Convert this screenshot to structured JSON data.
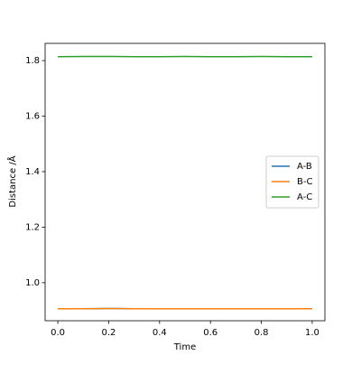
{
  "chart_data": {
    "type": "line",
    "x_label": "Time",
    "y_label": "Distance /Å",
    "x": [
      0,
      0.1,
      0.2,
      0.3,
      0.4,
      0.5,
      0.6,
      0.7,
      0.8,
      0.9,
      1
    ],
    "series": [
      {
        "name": "A-B",
        "color": "#1f77b4",
        "values": [
          0.906,
          0.906,
          0.907,
          0.906,
          0.906,
          0.906,
          0.906,
          0.906,
          0.906,
          0.906,
          0.906
        ]
      },
      {
        "name": "B-C",
        "color": "#ff7f0e",
        "values": [
          0.906,
          0.906,
          0.907,
          0.906,
          0.906,
          0.906,
          0.906,
          0.906,
          0.906,
          0.906,
          0.906
        ]
      },
      {
        "name": "A-C",
        "color": "#2ca02c",
        "values": [
          1.814,
          1.815,
          1.815,
          1.814,
          1.814,
          1.815,
          1.814,
          1.814,
          1.815,
          1.814,
          1.814
        ]
      }
    ],
    "xlim": [
      -0.05,
      1.05
    ],
    "ylim": [
      0.863,
      1.862
    ],
    "xticks": [
      {
        "value": 0,
        "label": "0.0"
      },
      0.2,
      0.4,
      0.6,
      0.8,
      {
        "value": 1,
        "label": "1.0"
      }
    ],
    "yticks": [
      {
        "value": 1,
        "label": "1.0"
      },
      1.2,
      1.4,
      1.6,
      1.8
    ],
    "grid": false,
    "legend": "right"
  }
}
